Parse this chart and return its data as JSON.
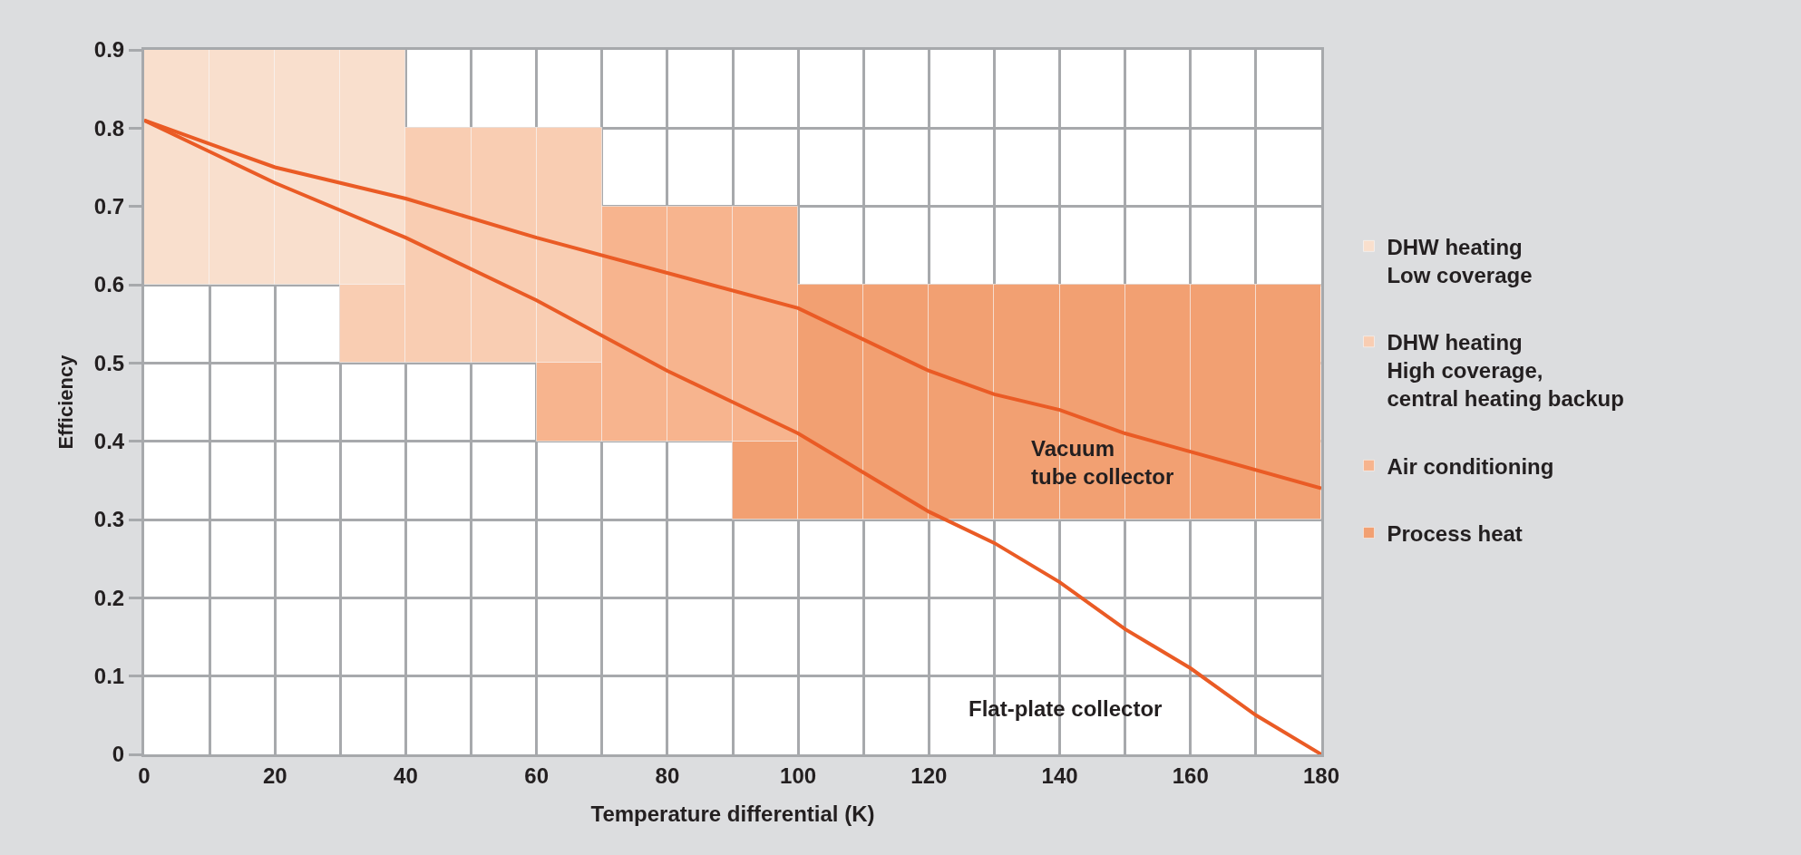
{
  "chart_data": {
    "type": "line",
    "xlabel": "Temperature differential (K)",
    "ylabel": "Efficiency",
    "xlim": [
      0,
      180
    ],
    "ylim": [
      0,
      0.9
    ],
    "xticks": [
      0,
      {
        "value": 10,
        "label": null
      },
      20,
      {
        "value": 30,
        "label": null
      },
      40,
      {
        "value": 50,
        "label": null
      },
      60,
      {
        "value": 70,
        "label": null
      },
      80,
      {
        "value": 90,
        "label": null
      },
      100,
      {
        "value": 110,
        "label": null
      },
      120,
      {
        "value": 130,
        "label": null
      },
      140,
      {
        "value": 150,
        "label": null
      },
      160,
      {
        "value": 170,
        "label": null
      },
      180
    ],
    "yticks": [
      0,
      0.1,
      0.2,
      0.3,
      0.4,
      0.5,
      0.6,
      0.7,
      0.8,
      0.9
    ],
    "grid": true,
    "legend": "right",
    "series": [
      {
        "type": "bar",
        "name": "DHW heating\nLow coverage",
        "color": "#f9dfcd",
        "x": [
          5,
          15,
          25,
          35
        ],
        "base": [
          0.6,
          0.6,
          0.6,
          0.6
        ],
        "values": [
          0.3,
          0.3,
          0.3,
          0.3
        ]
      },
      {
        "type": "bar",
        "name": "DHW heating\nHigh coverage,\ncentral heating backup",
        "color": "#f9cdb2",
        "x": [
          35,
          45,
          55,
          65
        ],
        "base": [
          0.5,
          0.5,
          0.5,
          0.5
        ],
        "values": [
          0.1,
          0.3,
          0.3,
          0.3
        ]
      },
      {
        "type": "bar",
        "name": "Air conditioning",
        "color": "#f7b48e",
        "x": [
          65,
          75,
          85,
          95
        ],
        "base": [
          0.4,
          0.4,
          0.4,
          0.4
        ],
        "values": [
          0.1,
          0.3,
          0.3,
          0.3
        ]
      },
      {
        "type": "bar",
        "name": "Process heat",
        "color": "#f2a072",
        "x": [
          95,
          105,
          115,
          125,
          135,
          145,
          155,
          165,
          175
        ],
        "base": [
          0.3,
          0.3,
          0.3,
          0.3,
          0.3,
          0.3,
          0.3,
          0.3,
          0.3
        ],
        "values": [
          0.1,
          0.3,
          0.3,
          0.3,
          0.3,
          0.3,
          0.3,
          0.3,
          0.3
        ]
      },
      {
        "color": "#ea5b25",
        "x": [
          0,
          20,
          40,
          60,
          100,
          120,
          130,
          140,
          150,
          180
        ],
        "values": [
          0.81,
          0.75,
          0.71,
          0.66,
          0.57,
          0.49,
          0.46,
          0.44,
          0.41,
          0.34
        ]
      },
      {
        "color": "#ea5b25",
        "x": [
          0,
          20,
          40,
          60,
          80,
          90,
          100,
          110,
          120,
          130,
          140,
          150,
          160,
          170,
          180
        ],
        "values": [
          0.81,
          0.73,
          0.66,
          0.58,
          0.49,
          0.45,
          0.41,
          0.36,
          0.31,
          0.27,
          0.22,
          0.16,
          0.11,
          0.05,
          0
        ]
      }
    ],
    "annotations": [
      "Vacuum\ntube collector",
      "Flat-plate collector"
    ]
  }
}
